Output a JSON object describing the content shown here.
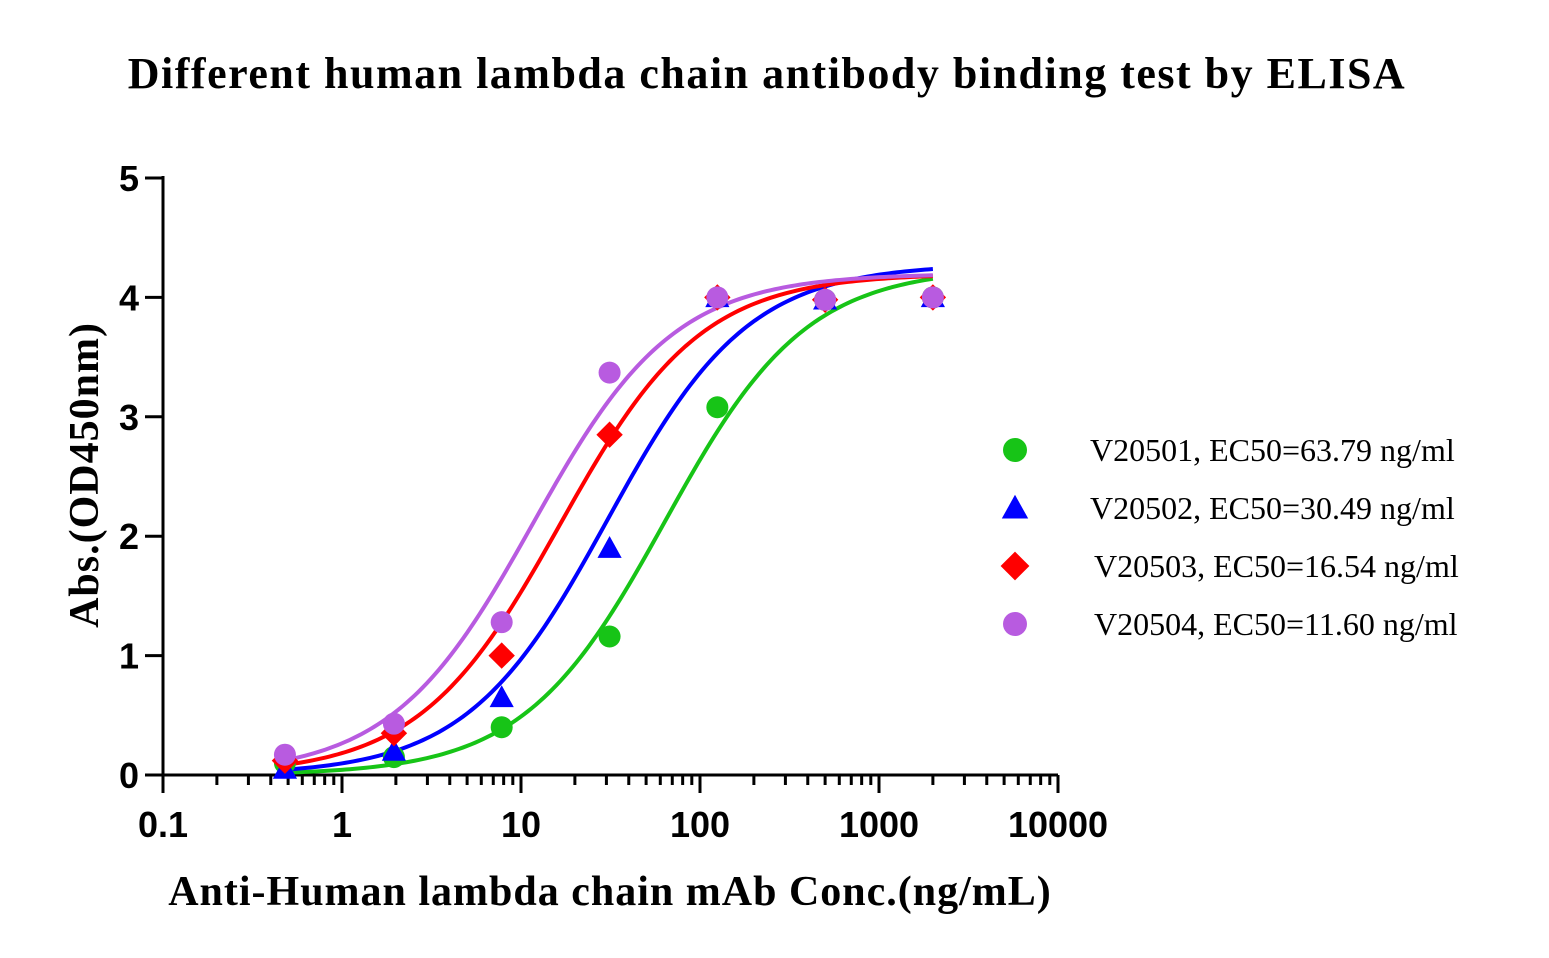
{
  "chart_data": {
    "type": "scatter",
    "title": "Different  human lambda chain antibody binding test by ELISA",
    "xlabel": "Anti-Human lambda chain mAb Conc.(ng/mL)",
    "ylabel": "Abs.(OD450nm)",
    "xscale": "log",
    "xlim": [
      0.1,
      10000
    ],
    "ylim": [
      0,
      5
    ],
    "xticks": [
      0.1,
      1,
      10,
      100,
      1000,
      10000
    ],
    "xtick_labels": [
      "0.1",
      "1",
      "10",
      "100",
      "1000",
      "10000"
    ],
    "yticks": [
      0,
      1,
      2,
      3,
      4,
      5
    ],
    "ytick_labels": [
      "0",
      "1",
      "2",
      "3",
      "4",
      "5"
    ],
    "grid": false,
    "legend_position": "right",
    "series": [
      {
        "name": "V20501, EC50=63.79 ng/ml",
        "color": "#17c417",
        "marker": "circle",
        "x": [
          0.48,
          1.95,
          7.8,
          31.25,
          125,
          500,
          2000
        ],
        "y": [
          0.1,
          0.15,
          0.4,
          1.16,
          3.08,
          3.98,
          4.0
        ],
        "fit": {
          "bottom": 0.0,
          "top": 4.25,
          "ec50": 63.79,
          "hill": 1.1
        }
      },
      {
        "name": "V20502, EC50=30.49 ng/ml",
        "color": "#0000ff",
        "marker": "triangle",
        "x": [
          0.48,
          1.95,
          7.8,
          31.25,
          125,
          500,
          2000
        ],
        "y": [
          0.05,
          0.2,
          0.65,
          1.9,
          4.0,
          3.98,
          4.0
        ],
        "fit": {
          "bottom": 0.0,
          "top": 4.28,
          "ec50": 30.49,
          "hill": 1.1
        }
      },
      {
        "name": "V20503, EC50=16.54 ng/ml",
        "color": "#ff0000",
        "marker": "diamond",
        "x": [
          0.48,
          1.95,
          7.8,
          31.25,
          125,
          500,
          2000
        ],
        "y": [
          0.12,
          0.35,
          1.0,
          2.85,
          4.0,
          3.98,
          4.0
        ],
        "fit": {
          "bottom": 0.0,
          "top": 4.2,
          "ec50": 16.54,
          "hill": 1.1
        }
      },
      {
        "name": "V20504, EC50=11.60 ng/ml",
        "color": "#b85be0",
        "marker": "circle",
        "x": [
          0.48,
          1.95,
          7.8,
          31.25,
          125,
          500,
          2000
        ],
        "y": [
          0.17,
          0.43,
          1.28,
          3.37,
          4.0,
          3.98,
          4.0
        ],
        "fit": {
          "bottom": 0.0,
          "top": 4.2,
          "ec50": 11.6,
          "hill": 1.1
        }
      }
    ]
  }
}
